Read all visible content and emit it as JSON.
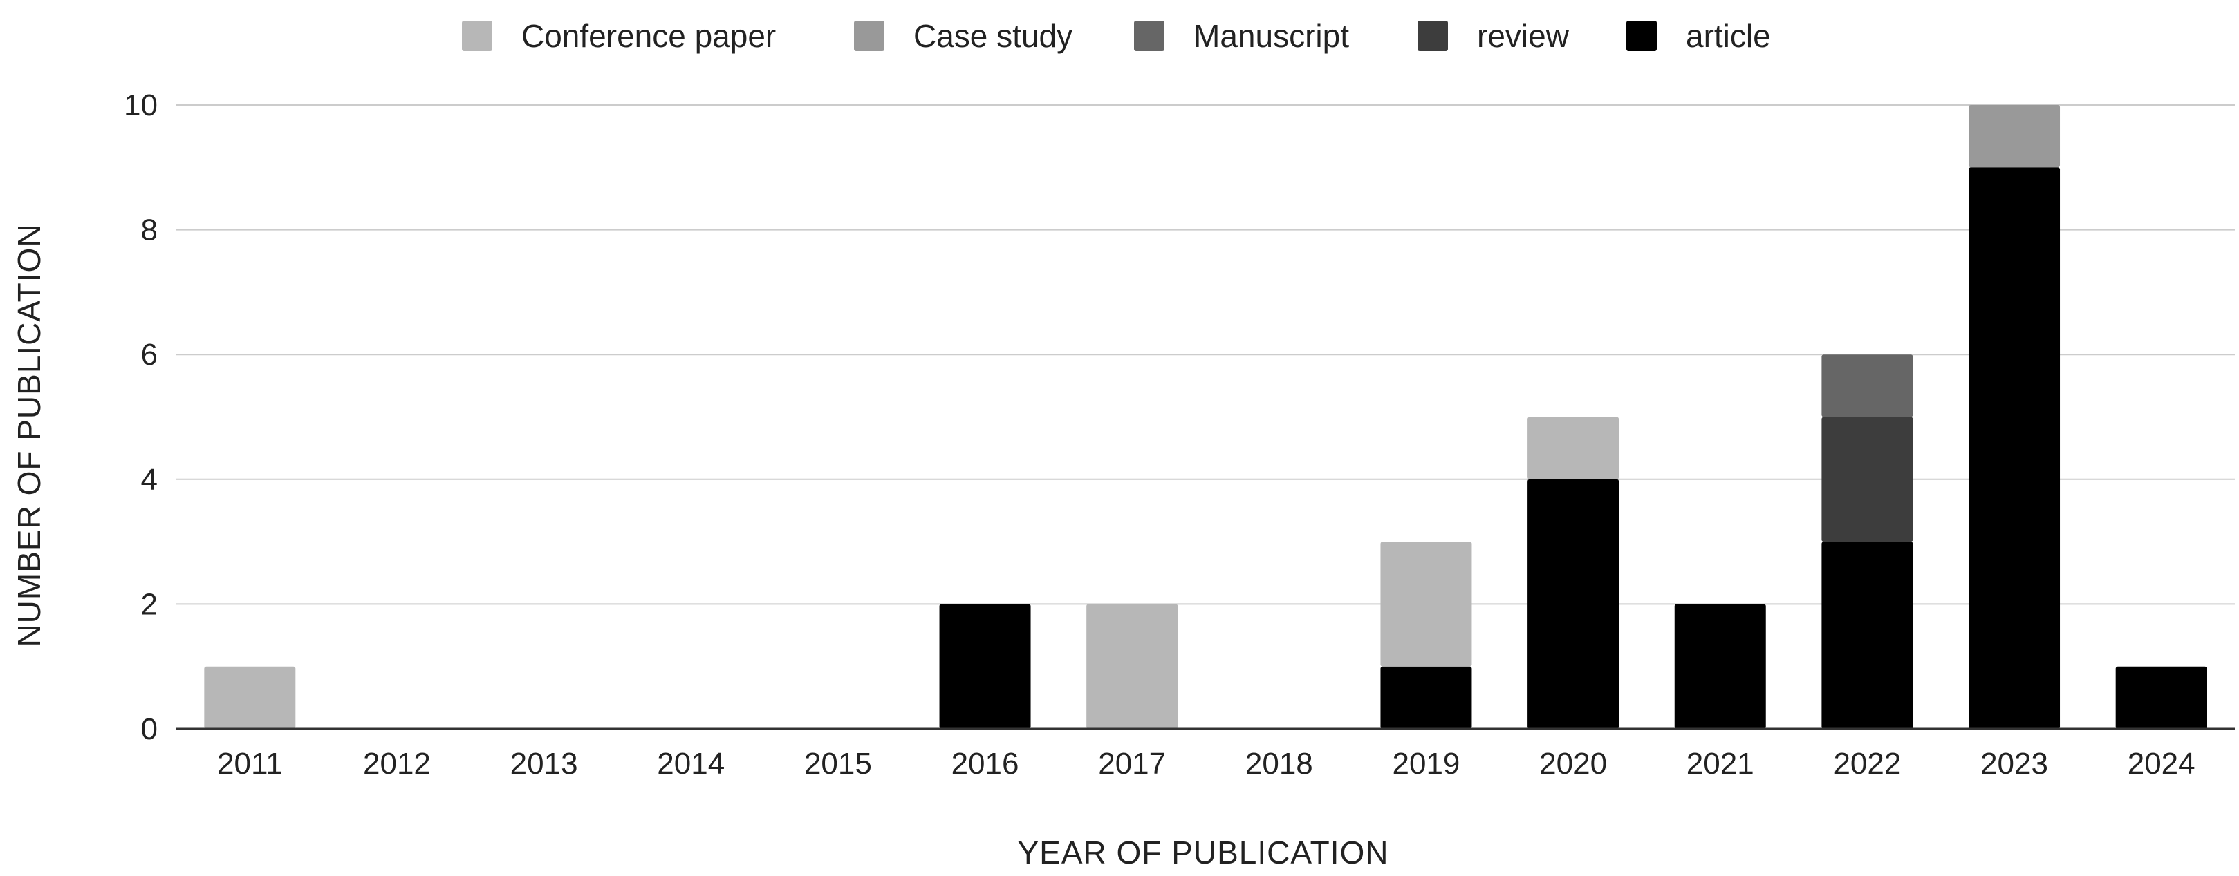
{
  "chart_data": {
    "type": "bar",
    "stacked": true,
    "title": "",
    "xlabel": "YEAR OF PUBLICATION",
    "ylabel": "NUMBER OF PUBLICATION",
    "ylim": [
      0,
      10
    ],
    "yticks": [
      0,
      2,
      4,
      6,
      8,
      10
    ],
    "grid": true,
    "legend_position": "top",
    "categories": [
      "2011",
      "2012",
      "2013",
      "2014",
      "2015",
      "2016",
      "2017",
      "2018",
      "2019",
      "2020",
      "2021",
      "2022",
      "2023",
      "2024"
    ],
    "series": [
      {
        "name": "article",
        "color": "#000000",
        "values": [
          0,
          0,
          0,
          0,
          0,
          2,
          0,
          0,
          1,
          4,
          2,
          3,
          9,
          1
        ]
      },
      {
        "name": "review",
        "color": "#3d3d3d",
        "values": [
          0,
          0,
          0,
          0,
          0,
          0,
          0,
          0,
          0,
          0,
          0,
          2,
          0,
          0
        ]
      },
      {
        "name": "Manuscript",
        "color": "#666666",
        "values": [
          0,
          0,
          0,
          0,
          0,
          0,
          0,
          0,
          0,
          0,
          0,
          1,
          0,
          0
        ]
      },
      {
        "name": "Case study",
        "color": "#999999",
        "values": [
          0,
          0,
          0,
          0,
          0,
          0,
          0,
          0,
          0,
          0,
          0,
          0,
          1,
          0
        ]
      },
      {
        "name": "Conference paper",
        "color": "#b7b7b7",
        "values": [
          1,
          0,
          0,
          0,
          0,
          0,
          2,
          0,
          2,
          1,
          0,
          0,
          0,
          0
        ]
      }
    ],
    "legend_order": [
      "Conference paper",
      "Case study",
      "Manuscript",
      "review",
      "article"
    ]
  }
}
